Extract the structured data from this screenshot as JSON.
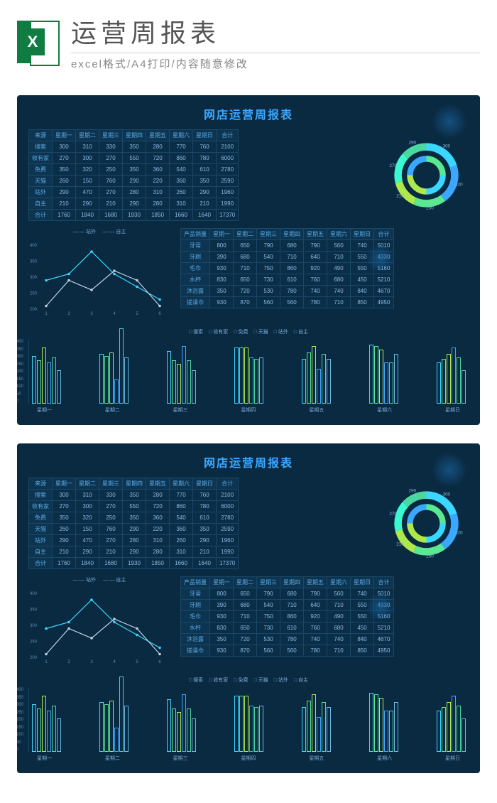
{
  "header": {
    "title": "运营周报表",
    "subtitle": "excel格式/A4打印/内容随意修改",
    "icon_letter": "X"
  },
  "dashboard": {
    "title": "网店运营周报表",
    "bg_color": "#0a2a42",
    "accent_color": "#3aa8ff",
    "table1": {
      "header": [
        "来源",
        "星期一",
        "星期二",
        "星期三",
        "星期四",
        "星期五",
        "星期六",
        "星期日",
        "合计"
      ],
      "rows": [
        [
          "搜索",
          "300",
          "310",
          "330",
          "350",
          "280",
          "770",
          "760",
          "2100"
        ],
        [
          "收有家",
          "270",
          "300",
          "270",
          "550",
          "720",
          "860",
          "780",
          "6000"
        ],
        [
          "免费",
          "350",
          "320",
          "250",
          "350",
          "360",
          "540",
          "610",
          "2780"
        ],
        [
          "天猫",
          "260",
          "150",
          "760",
          "290",
          "220",
          "360",
          "350",
          "2590"
        ],
        [
          "站外",
          "290",
          "470",
          "270",
          "280",
          "310",
          "260",
          "290",
          "1960"
        ],
        [
          "自主",
          "210",
          "290",
          "210",
          "290",
          "280",
          "310",
          "210",
          "1990"
        ],
        [
          "合计",
          "1760",
          "1840",
          "1680",
          "1930",
          "1850",
          "1660",
          "1640",
          "17370"
        ]
      ]
    },
    "table2": {
      "header": [
        "产品销量",
        "星期一",
        "星期二",
        "星期三",
        "星期四",
        "星期五",
        "星期六",
        "星期日",
        "合计"
      ],
      "rows": [
        [
          "牙膏",
          "800",
          "650",
          "790",
          "680",
          "790",
          "560",
          "740",
          "5010"
        ],
        [
          "牙刷",
          "390",
          "680",
          "540",
          "710",
          "640",
          "710",
          "550",
          "4330"
        ],
        [
          "毛巾",
          "930",
          "710",
          "750",
          "860",
          "920",
          "490",
          "550",
          "5160"
        ],
        [
          "水杯",
          "830",
          "650",
          "730",
          "610",
          "760",
          "680",
          "450",
          "5210"
        ],
        [
          "沐浴露",
          "350",
          "720",
          "530",
          "780",
          "740",
          "740",
          "840",
          "4670"
        ],
        [
          "搓澡巾",
          "930",
          "870",
          "560",
          "560",
          "780",
          "710",
          "850",
          "4950"
        ]
      ]
    },
    "donut": {
      "segments": [
        {
          "label": "300",
          "angle": 72,
          "color": "#3ad8ff"
        },
        {
          "label": "320",
          "angle": 72,
          "color": "#3aa8ff"
        },
        {
          "label": "250",
          "angle": 60,
          "color": "#5ae890"
        },
        {
          "label": "210",
          "angle": 52,
          "color": "#aee84a"
        },
        {
          "label": "270",
          "angle": 56,
          "color": "#3af8d0"
        },
        {
          "label": "290",
          "angle": 48,
          "color": "#4ad8a0"
        }
      ],
      "inner_segments": [
        {
          "angle": 90,
          "color": "#5ae890"
        },
        {
          "angle": 90,
          "color": "#3ad8ff"
        },
        {
          "angle": 90,
          "color": "#aee84a"
        },
        {
          "angle": 90,
          "color": "#3aa8ff"
        }
      ]
    },
    "line_chart": {
      "legend": [
        "站外",
        "自主"
      ],
      "x": [
        1,
        2,
        3,
        4,
        5,
        6
      ],
      "series": [
        {
          "name": "站外",
          "color": "#3ad8ff",
          "values": [
            290,
            310,
            380,
            310,
            270,
            230
          ]
        },
        {
          "name": "自主",
          "color": "#c0d0e0",
          "values": [
            210,
            290,
            260,
            320,
            290,
            210
          ]
        }
      ],
      "ylim": [
        200,
        400
      ],
      "y_ticks": [
        200,
        250,
        300,
        350,
        400
      ]
    },
    "bar_chart": {
      "legend": [
        "搜索",
        "收有家",
        "免费",
        "天猫",
        "站外",
        "自主"
      ],
      "colors": [
        "#3ad8ff",
        "#5ae890",
        "#aee84a",
        "#3aa8ff",
        "#4ad8a0",
        "#6ab8e0"
      ],
      "categories": [
        "星期一",
        "星期二",
        "星期三",
        "星期四",
        "星期五",
        "星期六",
        "星期日"
      ],
      "data": [
        [
          300,
          270,
          350,
          260,
          290,
          210
        ],
        [
          310,
          300,
          320,
          150,
          470,
          290
        ],
        [
          330,
          270,
          250,
          360,
          270,
          210
        ],
        [
          350,
          350,
          350,
          290,
          280,
          290
        ],
        [
          280,
          320,
          360,
          220,
          310,
          280
        ],
        [
          370,
          360,
          340,
          260,
          260,
          310
        ],
        [
          260,
          280,
          310,
          350,
          290,
          210
        ]
      ],
      "ylim": [
        0,
        400
      ],
      "y_ticks": [
        0,
        50,
        100,
        150,
        200,
        250,
        300,
        350,
        400
      ]
    }
  }
}
